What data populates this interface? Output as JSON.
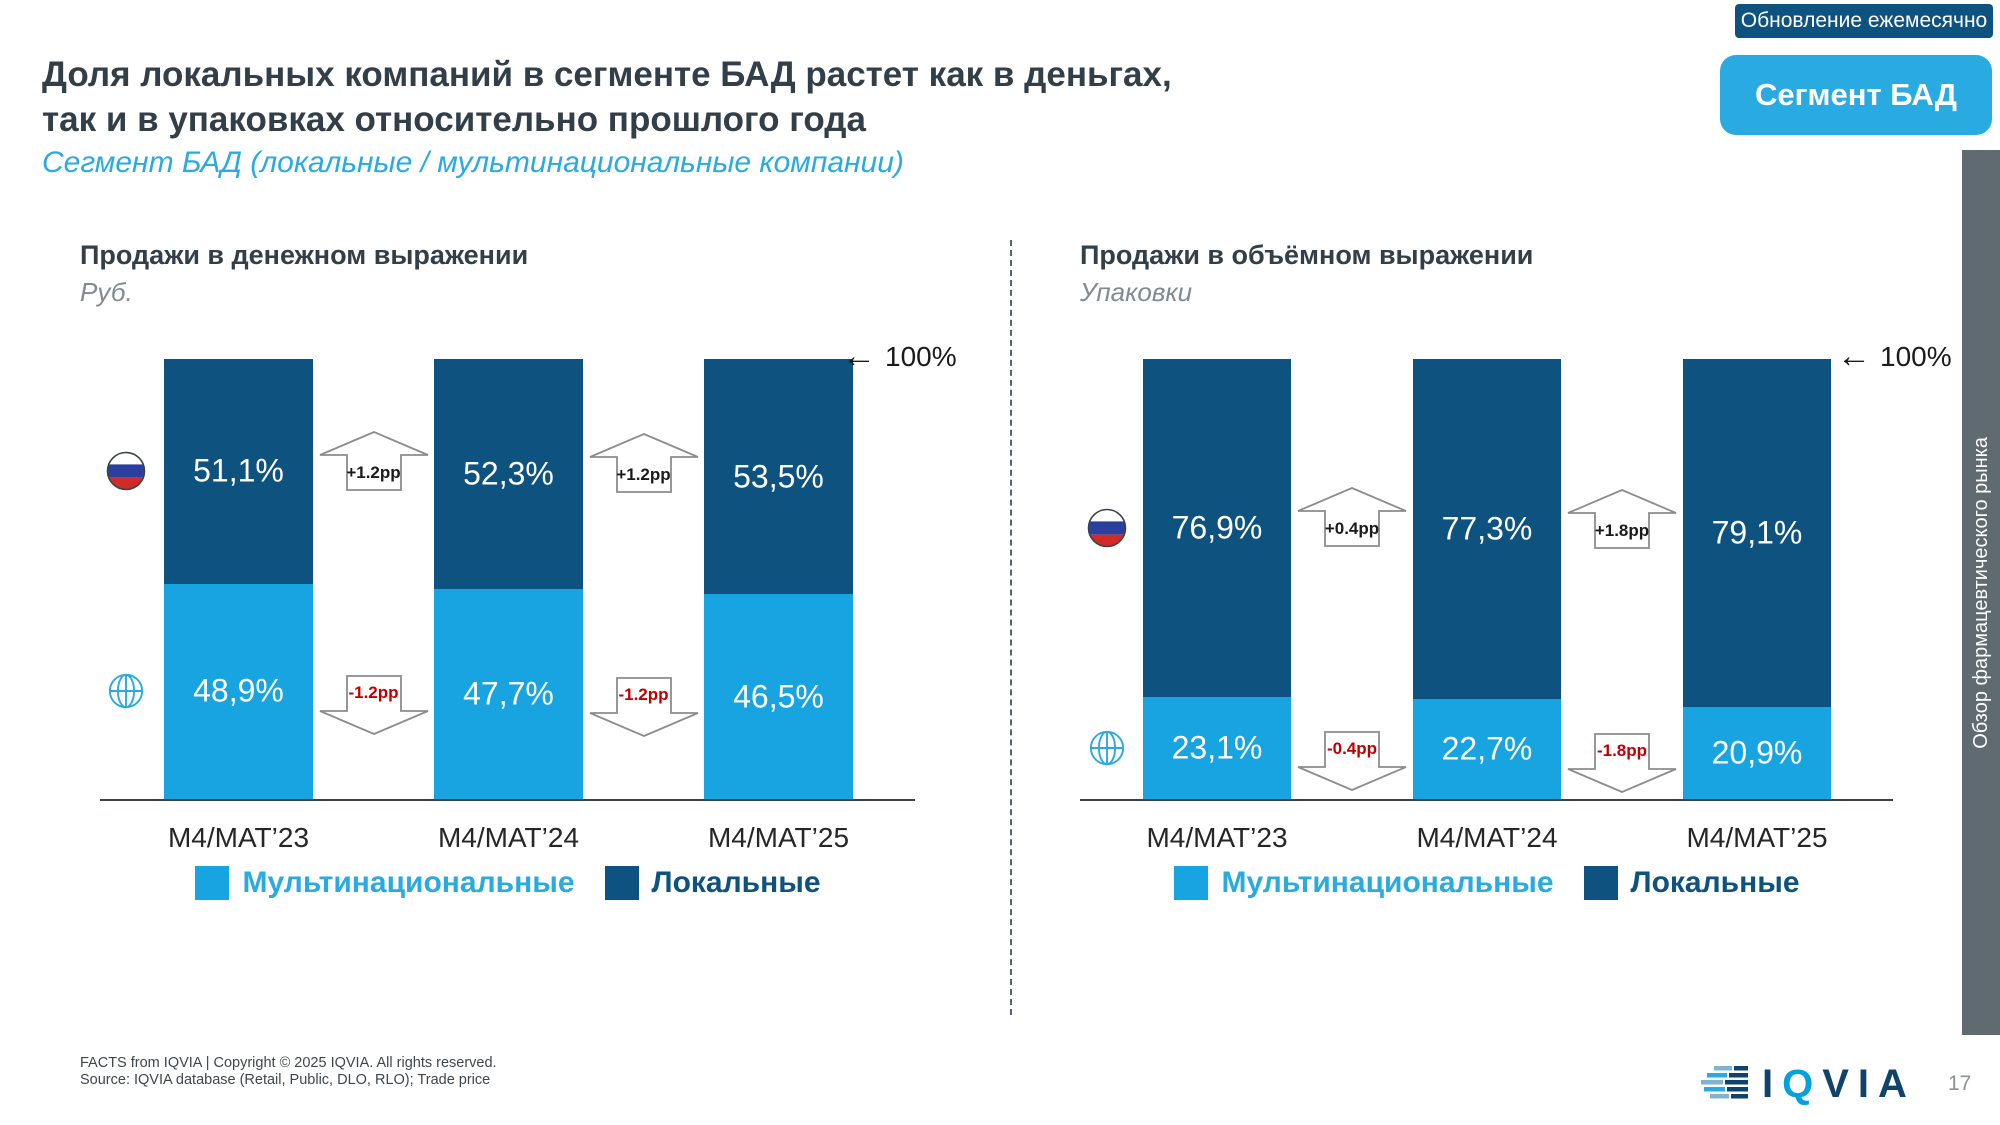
{
  "badge": {
    "label": "Обновление ежемесячно"
  },
  "segment_button": {
    "label": "Сегмент БАД"
  },
  "title": {
    "line1": "Доля локальных компаний в сегменте БАД растет как в деньгах,",
    "line2": "так и в упаковках относительно прошлого года"
  },
  "subtitle": "Сегмент БАД (локальные / мультинациональные компании)",
  "side_tab": {
    "label": "Обзор фармацевтического рынка"
  },
  "legend": {
    "multinational": "Мультинациональные",
    "local": "Локальные"
  },
  "colors": {
    "local": "#0e527f",
    "multinational": "#17a4e0",
    "accent_blue": "#29abe2",
    "negative_red": "#c00000",
    "title_text": "#333f48",
    "tab_gray": "#5f6a71",
    "flag_blue": "#2b3f9e",
    "flag_red": "#d02b27"
  },
  "chart_data": [
    {
      "type": "bar",
      "stacked": true,
      "title": "Продажи в денежном выражении",
      "unit": "Руб.",
      "categories": [
        "M4/MAT’23",
        "M4/MAT’24",
        "M4/MAT’25"
      ],
      "series": [
        {
          "name": "Мультинациональные",
          "values": [
            48.9,
            47.7,
            46.5
          ],
          "labels": [
            "48,9%",
            "47,7%",
            "46,5%"
          ]
        },
        {
          "name": "Локальные",
          "values": [
            51.1,
            52.3,
            53.5
          ],
          "labels": [
            "51,1%",
            "52,3%",
            "53,5%"
          ]
        }
      ],
      "changes": {
        "local": [
          "+1.2pp",
          "+1.2pp"
        ],
        "multinational": [
          "-1.2pp",
          "-1.2pp"
        ]
      },
      "axis_marker": "100%",
      "ylim": [
        0,
        100
      ],
      "legend_position": "bottom"
    },
    {
      "type": "bar",
      "stacked": true,
      "title": "Продажи в объёмном выражении",
      "unit": "Упаковки",
      "categories": [
        "M4/MAT’23",
        "M4/MAT’24",
        "M4/MAT’25"
      ],
      "series": [
        {
          "name": "Мультинациональные",
          "values": [
            23.1,
            22.7,
            20.9
          ],
          "labels": [
            "23,1%",
            "22,7%",
            "20,9%"
          ]
        },
        {
          "name": "Локальные",
          "values": [
            76.9,
            77.3,
            79.1
          ],
          "labels": [
            "76,9%",
            "77,3%",
            "79,1%"
          ]
        }
      ],
      "changes": {
        "local": [
          "+0.4pp",
          "+1.8pp"
        ],
        "multinational": [
          "-0.4pp",
          "-1.8pp"
        ]
      },
      "axis_marker": "100%",
      "ylim": [
        0,
        100
      ],
      "legend_position": "bottom"
    }
  ],
  "footer": {
    "line1": "FACTS from IQVIA | Copyright © 2025 IQVIA. All rights reserved.",
    "line2": "Source: IQVIA database (Retail, Public, DLO, RLO); Trade price"
  },
  "logo": {
    "part1": "I",
    "part2": "Q",
    "part3": "VIA"
  },
  "page_number": "17"
}
